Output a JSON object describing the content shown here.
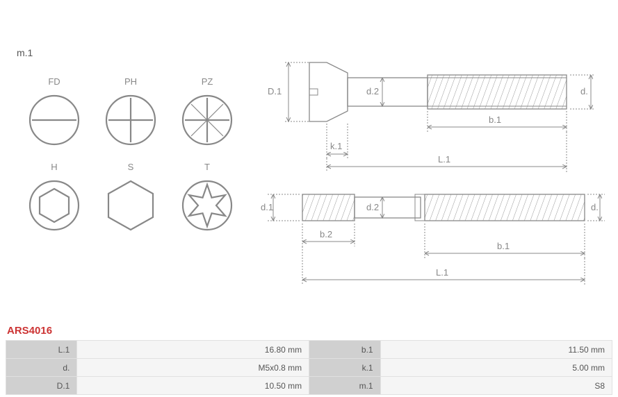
{
  "part_number": "ARS4016",
  "diagram": {
    "m1_label": "m.1",
    "drive_types": {
      "row1": [
        {
          "code": "FD",
          "name": "slot-drive"
        },
        {
          "code": "PH",
          "name": "phillips-drive"
        },
        {
          "code": "PZ",
          "name": "pozidriv-drive"
        }
      ],
      "row2": [
        {
          "code": "H",
          "name": "hex-socket-drive"
        },
        {
          "code": "S",
          "name": "hex-external-drive"
        },
        {
          "code": "T",
          "name": "torx-drive"
        }
      ]
    },
    "stroke_color": "#888888",
    "stroke_width": 1.2,
    "hatch_color": "#999999",
    "side_view": {
      "dims": {
        "D1": "D.1",
        "d2": "d.2",
        "d": "d.",
        "k1": "k.1",
        "b1": "b.1",
        "L1": "L.1"
      }
    },
    "stud_view": {
      "dims": {
        "d1": "d.1",
        "d2": "d.2",
        "d": "d.",
        "b2": "b.2",
        "b1": "b.1",
        "L1": "L.1"
      }
    }
  },
  "specs": [
    {
      "l1": "L.1",
      "v1": "16.80 mm",
      "l2": "b.1",
      "v2": "11.50 mm"
    },
    {
      "l1": "d.",
      "v1": "M5x0.8 mm",
      "l2": "k.1",
      "v2": "5.00 mm"
    },
    {
      "l1": "D.1",
      "v1": "10.50 mm",
      "l2": "m.1",
      "v2": "S8"
    }
  ]
}
